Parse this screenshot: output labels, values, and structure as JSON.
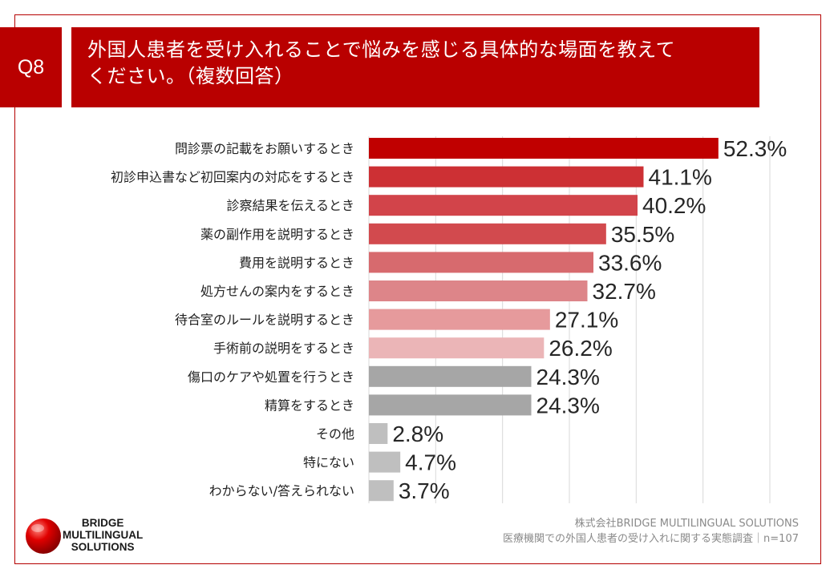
{
  "header": {
    "question_id": "Q8",
    "title_line1": "外国人患者を受け入れることで悩みを感じる具体的な場面を教えて",
    "title_line2": "ください。（複数回答）"
  },
  "chart_data": {
    "type": "bar",
    "orientation": "horizontal",
    "title": "外国人患者を受け入れることで悩みを感じる具体的な場面を教えてください。（複数回答）",
    "xlabel": "",
    "ylabel": "",
    "xlim": [
      0,
      60
    ],
    "grid": true,
    "value_suffix": "%",
    "categories": [
      "問診票の記載をお願いするとき",
      "初診申込書など初回案内の対応をするとき",
      "診察結果を伝えるとき",
      "薬の副作用を説明するとき",
      "費用を説明するとき",
      "処方せんの案内をするとき",
      "待合室のルールを説明するとき",
      "手術前の説明をするとき",
      "傷口のケアや処置を行うとき",
      "精算をするとき",
      "その他",
      "特にない",
      "わからない/答えられない"
    ],
    "values": [
      52.3,
      41.1,
      40.2,
      35.5,
      33.6,
      32.7,
      27.1,
      26.2,
      24.3,
      24.3,
      2.8,
      4.7,
      3.7
    ],
    "labels": [
      "52.3%",
      "41.1%",
      "40.2%",
      "35.5%",
      "33.6%",
      "32.7%",
      "27.1%",
      "26.2%",
      "24.3%",
      "24.3%",
      "2.8%",
      "4.7%",
      "3.7%"
    ],
    "colors": [
      "#c00000",
      "#cd3034",
      "#d2444a",
      "#d24a4e",
      "#d76a6e",
      "#dd8589",
      "#e69a9c",
      "#ebb5b7",
      "#a6a6a6",
      "#a6a6a6",
      "#bfbfbf",
      "#bfbfbf",
      "#bfbfbf"
    ]
  },
  "logo": {
    "line1": "BRIDGE",
    "line2": "MULTILINGUAL",
    "line3": "SOLUTIONS",
    "color": "#d40000"
  },
  "source": {
    "company": "株式会社BRIDGE MULTILINGUAL SOLUTIONS",
    "survey": "医療機関での外国人患者の受け入れに関する実態調査｜n=107"
  }
}
